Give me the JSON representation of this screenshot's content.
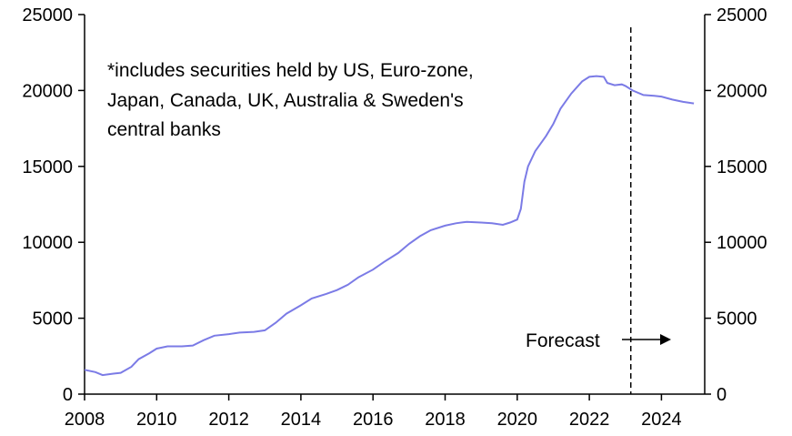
{
  "chart_data": {
    "type": "line",
    "title": "",
    "xlabel": "",
    "ylabel": "",
    "xlim": [
      2008,
      2025.2
    ],
    "ylim": [
      0,
      25000
    ],
    "x_ticks": [
      "2008",
      "2010",
      "2012",
      "2014",
      "2016",
      "2018",
      "2020",
      "2022",
      "2024"
    ],
    "x_tick_values": [
      2008,
      2010,
      2012,
      2014,
      2016,
      2018,
      2020,
      2022,
      2024
    ],
    "y_ticks_left": [
      "0",
      "5000",
      "10000",
      "15000",
      "20000",
      "25000"
    ],
    "y_ticks_right": [
      "0",
      "5000",
      "10000",
      "15000",
      "20000",
      "25000"
    ],
    "y_tick_values": [
      0,
      5000,
      10000,
      15000,
      20000,
      25000
    ],
    "grid": false,
    "colors": {
      "series": "#7b7be6",
      "axis": "#000000",
      "forecast_line": "#000000"
    },
    "series": [
      {
        "x": [
          2008.0,
          2008.3,
          2008.5,
          2008.8,
          2009.0,
          2009.3,
          2009.5,
          2009.8,
          2010.0,
          2010.3,
          2010.7,
          2011.0,
          2011.3,
          2011.6,
          2012.0,
          2012.3,
          2012.7,
          2013.0,
          2013.3,
          2013.6,
          2014.0,
          2014.3,
          2014.7,
          2015.0,
          2015.3,
          2015.6,
          2016.0,
          2016.3,
          2016.7,
          2017.0,
          2017.3,
          2017.6,
          2018.0,
          2018.3,
          2018.6,
          2019.0,
          2019.3,
          2019.6,
          2019.8,
          2020.0,
          2020.1,
          2020.2,
          2020.3,
          2020.5,
          2020.8,
          2021.0,
          2021.2,
          2021.5,
          2021.8,
          2022.0,
          2022.2,
          2022.4,
          2022.5,
          2022.7,
          2022.9,
          2023.0,
          2023.2,
          2023.5,
          2023.8,
          2024.0,
          2024.3,
          2024.6,
          2024.9
        ],
        "y": [
          1600,
          1450,
          1250,
          1350,
          1400,
          1800,
          2300,
          2700,
          3000,
          3150,
          3150,
          3200,
          3550,
          3850,
          3950,
          4050,
          4100,
          4200,
          4700,
          5300,
          5850,
          6300,
          6600,
          6850,
          7200,
          7700,
          8200,
          8700,
          9300,
          9900,
          10400,
          10800,
          11100,
          11250,
          11350,
          11300,
          11250,
          11150,
          11300,
          11500,
          12200,
          14000,
          15000,
          16000,
          17000,
          17800,
          18800,
          19800,
          20600,
          20900,
          20950,
          20900,
          20500,
          20350,
          20400,
          20300,
          20000,
          19700,
          19650,
          19600,
          19400,
          19250,
          19150
        ]
      }
    ],
    "forecast_start": 2023.15,
    "annotations": {
      "note_lines": [
        "*includes securities held by US, Euro-zone,",
        "Japan, Canada, UK, Australia & Sweden's",
        "central banks"
      ],
      "forecast_label": "Forecast"
    }
  }
}
